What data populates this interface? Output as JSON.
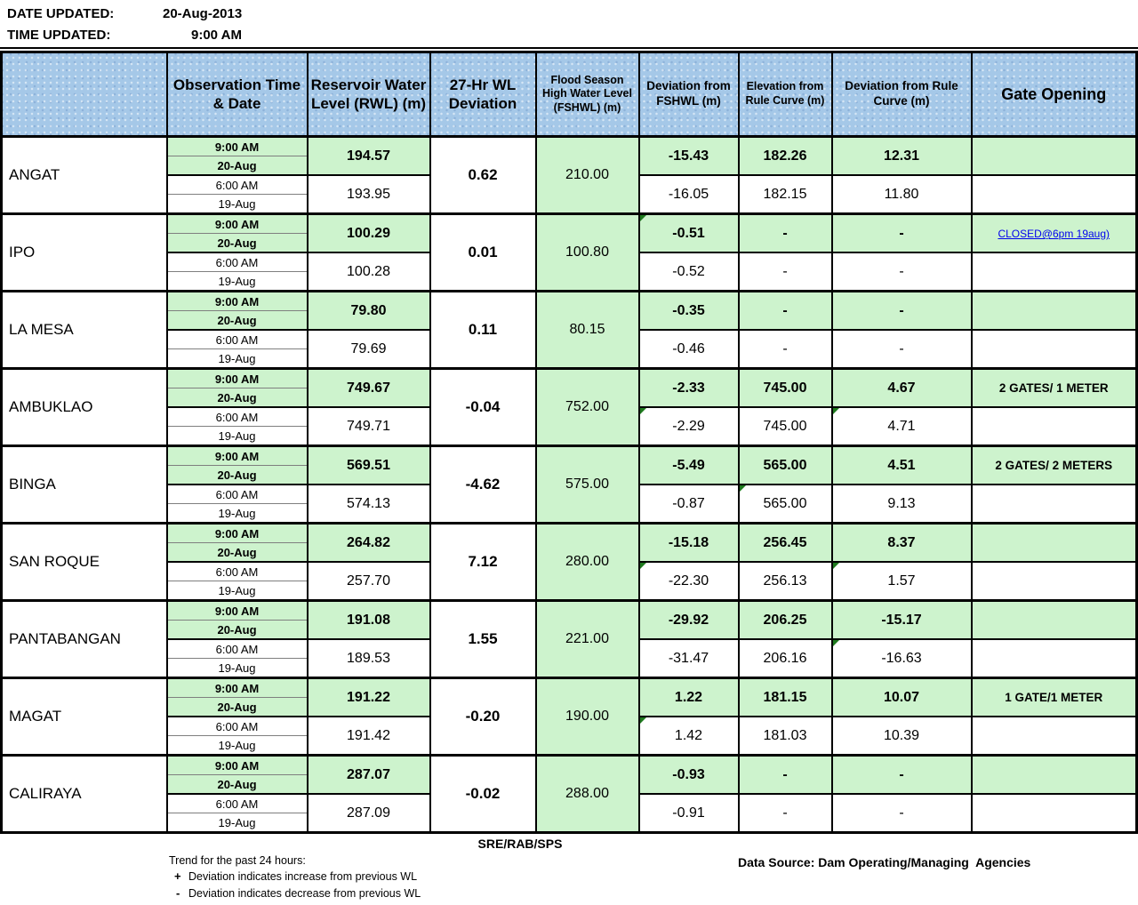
{
  "meta": {
    "date_label": "DATE UPDATED:",
    "date_value": "20-Aug-2013",
    "time_label": "TIME UPDATED:",
    "time_value": "9:00 AM"
  },
  "colors": {
    "header_bg": "#a5c8e8",
    "highlight_bg": "#cdf3cd",
    "grid": "#000000",
    "link": "#0000ee",
    "comment_marker": "#1e7a1e"
  },
  "table": {
    "columns": [
      "",
      "Observation Time & Date",
      "Reservoir Water Level (RWL) (m)",
      "27-Hr WL Deviation",
      "Flood Season High Water Level (FSHWL) (m)",
      "Deviation from FSHWL (m)",
      "Elevation from Rule Curve (m)",
      "Deviation from Rule Curve (m)",
      "Gate Opening"
    ],
    "rows": [
      {
        "name": "ANGAT",
        "obs_time_current": "9:00 AM",
        "obs_date_current": "20-Aug",
        "obs_time_prev": "6:00 AM",
        "obs_date_prev": "19-Aug",
        "rwl_current": "194.57",
        "rwl_prev": "193.95",
        "wl_deviation": "0.62",
        "fshwl": "210.00",
        "dev_fshwl_current": "-15.43",
        "dev_fshwl_prev": "-16.05",
        "elev_rc_current": "182.26",
        "elev_rc_prev": "182.15",
        "dev_rc_current": "12.31",
        "dev_rc_prev": "11.80",
        "gate": "",
        "gate_prev": "",
        "gate_link": false,
        "markers": []
      },
      {
        "name": "IPO",
        "obs_time_current": "9:00 AM",
        "obs_date_current": "20-Aug",
        "obs_time_prev": "6:00 AM",
        "obs_date_prev": "19-Aug",
        "rwl_current": "100.29",
        "rwl_prev": "100.28",
        "wl_deviation": "0.01",
        "fshwl": "100.80",
        "dev_fshwl_current": "-0.51",
        "dev_fshwl_prev": "-0.52",
        "elev_rc_current": "-",
        "elev_rc_prev": "-",
        "dev_rc_current": "-",
        "dev_rc_prev": "-",
        "gate": "CLOSED@6pm 19aug)",
        "gate_prev": "",
        "gate_link": true,
        "markers": [
          "dev_fshwl_current"
        ]
      },
      {
        "name": "LA MESA",
        "obs_time_current": "9:00 AM",
        "obs_date_current": "20-Aug",
        "obs_time_prev": "6:00 AM",
        "obs_date_prev": "19-Aug",
        "rwl_current": "79.80",
        "rwl_prev": "79.69",
        "wl_deviation": "0.11",
        "fshwl": "80.15",
        "dev_fshwl_current": "-0.35",
        "dev_fshwl_prev": "-0.46",
        "elev_rc_current": "-",
        "elev_rc_prev": "-",
        "dev_rc_current": "-",
        "dev_rc_prev": "-",
        "gate": "",
        "gate_prev": "",
        "gate_link": false,
        "markers": []
      },
      {
        "name": "AMBUKLAO",
        "obs_time_current": "9:00 AM",
        "obs_date_current": "20-Aug",
        "obs_time_prev": "6:00 AM",
        "obs_date_prev": "19-Aug",
        "rwl_current": "749.67",
        "rwl_prev": "749.71",
        "wl_deviation": "-0.04",
        "fshwl": "752.00",
        "dev_fshwl_current": "-2.33",
        "dev_fshwl_prev": "-2.29",
        "elev_rc_current": "745.00",
        "elev_rc_prev": "745.00",
        "dev_rc_current": "4.67",
        "dev_rc_prev": "4.71",
        "gate": "2 GATES/ 1 METER",
        "gate_prev": "",
        "gate_link": false,
        "markers": [
          "dev_fshwl_prev",
          "dev_rc_prev"
        ]
      },
      {
        "name": "BINGA",
        "obs_time_current": "9:00 AM",
        "obs_date_current": "20-Aug",
        "obs_time_prev": "6:00 AM",
        "obs_date_prev": "19-Aug",
        "rwl_current": "569.51",
        "rwl_prev": "574.13",
        "wl_deviation": "-4.62",
        "fshwl": "575.00",
        "dev_fshwl_current": "-5.49",
        "dev_fshwl_prev": "-0.87",
        "elev_rc_current": "565.00",
        "elev_rc_prev": "565.00",
        "dev_rc_current": "4.51",
        "dev_rc_prev": "9.13",
        "gate": "2 GATES/ 2 METERS",
        "gate_prev": "",
        "gate_link": false,
        "markers": [
          "elev_rc_prev"
        ]
      },
      {
        "name": "SAN ROQUE",
        "obs_time_current": "9:00 AM",
        "obs_date_current": "20-Aug",
        "obs_time_prev": "6:00 AM",
        "obs_date_prev": "19-Aug",
        "rwl_current": "264.82",
        "rwl_prev": "257.70",
        "wl_deviation": "7.12",
        "fshwl": "280.00",
        "dev_fshwl_current": "-15.18",
        "dev_fshwl_prev": "-22.30",
        "elev_rc_current": "256.45",
        "elev_rc_prev": "256.13",
        "dev_rc_current": "8.37",
        "dev_rc_prev": "1.57",
        "gate": "",
        "gate_prev": "",
        "gate_link": false,
        "markers": [
          "dev_fshwl_prev",
          "dev_rc_prev"
        ]
      },
      {
        "name": "PANTABANGAN",
        "obs_time_current": "9:00 AM",
        "obs_date_current": "20-Aug",
        "obs_time_prev": "6:00 AM",
        "obs_date_prev": "19-Aug",
        "rwl_current": "191.08",
        "rwl_prev": "189.53",
        "wl_deviation": "1.55",
        "fshwl": "221.00",
        "dev_fshwl_current": "-29.92",
        "dev_fshwl_prev": "-31.47",
        "elev_rc_current": "206.25",
        "elev_rc_prev": "206.16",
        "dev_rc_current": "-15.17",
        "dev_rc_prev": "-16.63",
        "gate": "",
        "gate_prev": "",
        "gate_link": false,
        "markers": [
          "dev_rc_prev"
        ]
      },
      {
        "name": "MAGAT",
        "obs_time_current": "9:00 AM",
        "obs_date_current": "20-Aug",
        "obs_time_prev": "6:00 AM",
        "obs_date_prev": "19-Aug",
        "rwl_current": "191.22",
        "rwl_prev": "191.42",
        "wl_deviation": "-0.20",
        "fshwl": "190.00",
        "dev_fshwl_current": "1.22",
        "dev_fshwl_prev": "1.42",
        "elev_rc_current": "181.15",
        "elev_rc_prev": "181.03",
        "dev_rc_current": "10.07",
        "dev_rc_prev": "10.39",
        "gate": "1 GATE/1 METER",
        "gate_prev": "",
        "gate_link": false,
        "markers": [
          "dev_fshwl_prev"
        ]
      },
      {
        "name": "CALIRAYA",
        "obs_time_current": "9:00 AM",
        "obs_date_current": "20-Aug",
        "obs_time_prev": "6:00 AM",
        "obs_date_prev": "19-Aug",
        "rwl_current": "287.07",
        "rwl_prev": "287.09",
        "wl_deviation": "-0.02",
        "fshwl": "288.00",
        "dev_fshwl_current": "-0.93",
        "dev_fshwl_prev": "-0.91",
        "elev_rc_current": "-",
        "elev_rc_prev": "-",
        "dev_rc_current": "-",
        "dev_rc_prev": "-",
        "gate": "",
        "gate_prev": "",
        "gate_link": false,
        "markers": []
      }
    ]
  },
  "footer": {
    "initials": "SRE/RAB/SPS",
    "trend_title": "Trend for the past 24 hours:",
    "trend_plus_symbol": "+",
    "trend_plus_text": "Deviation indicates increase from previous WL",
    "trend_minus_symbol": "-",
    "trend_minus_text": "Deviation indicates decrease from previous WL",
    "data_source": "Data Source: Dam Operating/Managing  Agencies"
  }
}
